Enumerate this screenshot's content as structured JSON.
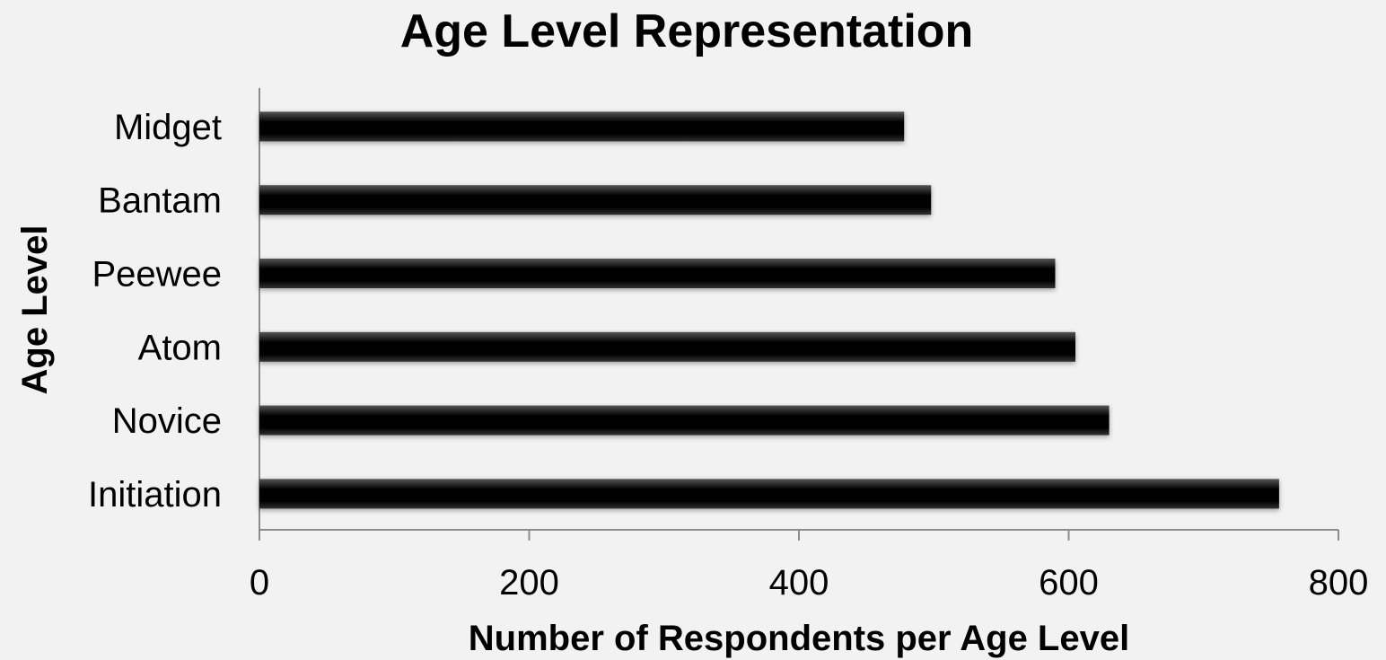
{
  "chart_data": {
    "type": "bar",
    "orientation": "horizontal",
    "title": "Age Level Representation",
    "xlabel": "Number of Respondents per Age Level",
    "ylabel": "Age Level",
    "categories": [
      "Midget",
      "Bantam",
      "Peewee",
      "Atom",
      "Novice",
      "Initiation"
    ],
    "values": [
      478,
      498,
      590,
      605,
      630,
      756
    ],
    "xlim": [
      0,
      800
    ],
    "xticks": [
      "0",
      "200",
      "400",
      "600",
      "800"
    ],
    "grid": false,
    "legend": "none",
    "bar_color": "#000000"
  }
}
